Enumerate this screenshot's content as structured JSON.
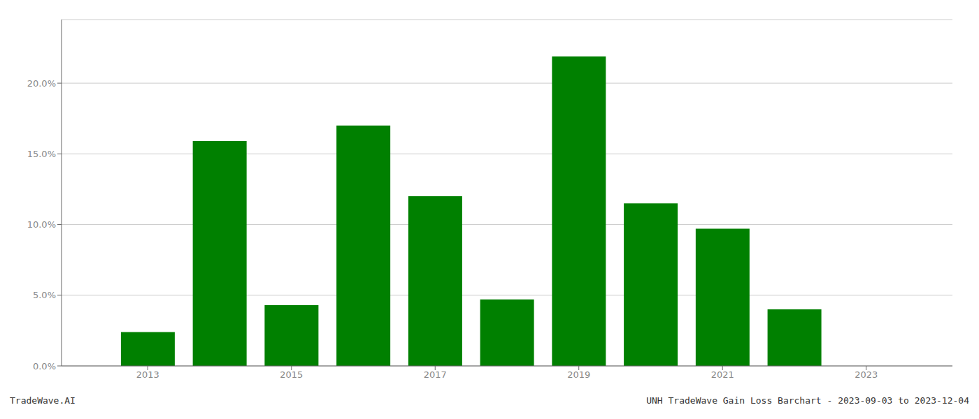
{
  "chart_data": {
    "type": "bar",
    "x": [
      2013,
      2014,
      2015,
      2016,
      2017,
      2018,
      2019,
      2020,
      2021,
      2022,
      2023
    ],
    "values": [
      0.024,
      0.159,
      0.043,
      0.17,
      0.12,
      0.047,
      0.219,
      0.115,
      0.097,
      0.04,
      0.0
    ],
    "color": "#008000",
    "xlim": [
      2011.8,
      2024.2
    ],
    "xticks": [
      2013,
      2015,
      2017,
      2019,
      2021,
      2023
    ],
    "ylim": [
      0,
      0.245
    ],
    "yticks": [
      {
        "value": 0.0,
        "label": "0.0%"
      },
      {
        "value": 0.05,
        "label": "5.0%"
      },
      {
        "value": 0.1,
        "label": "10.0%"
      },
      {
        "value": 0.15,
        "label": "15.0%"
      },
      {
        "value": 0.2,
        "label": "20.0%"
      }
    ],
    "grid": true,
    "annotations": [
      "TradeWave.AI",
      "UNH TradeWave Gain Loss Barchart - 2023-09-03 to 2023-12-04"
    ]
  }
}
